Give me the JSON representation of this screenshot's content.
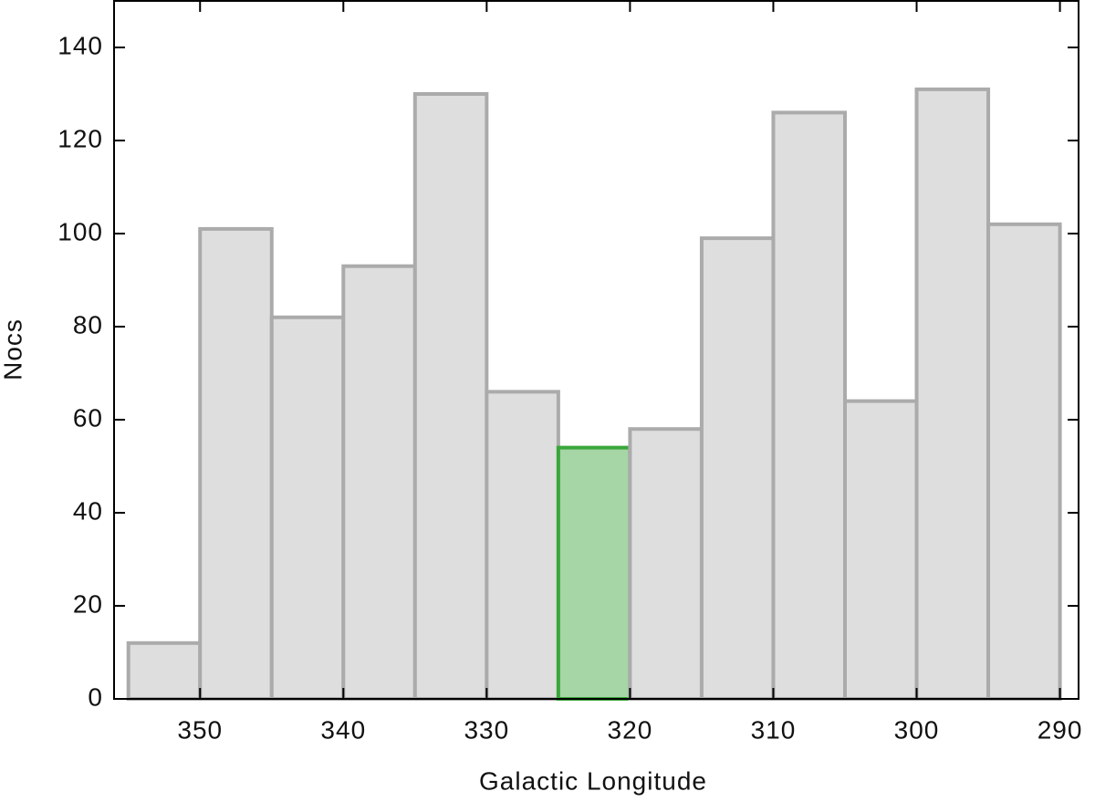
{
  "chart_data": {
    "type": "histogram",
    "x_label": "Galactic Longitude",
    "y_label": "Nocs",
    "bins": [
      355,
      350,
      345,
      340,
      335,
      330,
      325,
      320,
      315,
      310,
      305,
      300,
      295,
      290
    ],
    "values": [
      12,
      101,
      82,
      93,
      130,
      66,
      54,
      58,
      99,
      126,
      64,
      131,
      102
    ],
    "colors": [
      "#dedede",
      "#dedede",
      "#dedede",
      "#dedede",
      "#dedede",
      "#dedede",
      "#a6d5a6",
      "#dedede",
      "#dedede",
      "#dedede",
      "#dedede",
      "#dedede",
      "#dedede"
    ],
    "edgecolors": [
      "#ababab",
      "#ababab",
      "#ababab",
      "#ababab",
      "#ababab",
      "#ababab",
      "#3aa63a",
      "#ababab",
      "#ababab",
      "#ababab",
      "#ababab",
      "#ababab",
      "#ababab"
    ],
    "xlim": [
      356,
      288.7
    ],
    "ylim": [
      0,
      150
    ],
    "xticks": [
      350,
      340,
      330,
      320,
      310,
      300,
      290
    ],
    "yticks": [
      0,
      20,
      40,
      60,
      80,
      100,
      120,
      140
    ]
  }
}
